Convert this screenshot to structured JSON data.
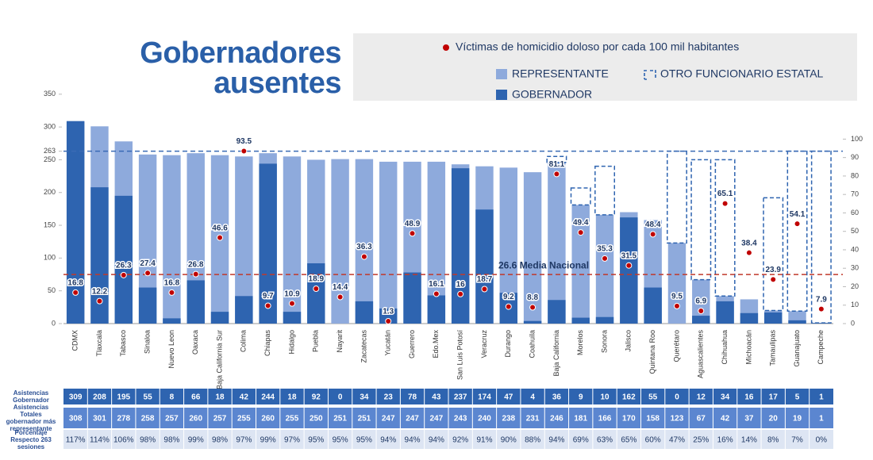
{
  "chart_data": {
    "type": "bar",
    "title": "Gobernadores ausentes",
    "categories": [
      "CDMX",
      "Tlaxcala",
      "Tabasco",
      "Sinaloa",
      "Nuevo Leon",
      "Oaxaca",
      "Baja California Sur",
      "Colima",
      "Chiapas",
      "Hidalgo",
      "Puebla",
      "Nayarit",
      "Zacatecas",
      "Yucatán",
      "Guerrero",
      "Edo.Mex",
      "San Luis Potosí",
      "Veracruz",
      "Durango",
      "Coahuila",
      "Baja California",
      "Morelos",
      "Sonora",
      "Jalisco",
      "Quintana Roo",
      "Querétaro",
      "Aguascalientes",
      "Chihuahua",
      "Michoacán",
      "Tamaulipas",
      "Guanajuato",
      "Campeche"
    ],
    "series": [
      {
        "name": "GOBERNADOR",
        "color": "#2e64b0",
        "values": [
          309,
          208,
          195,
          55,
          8,
          66,
          18,
          42,
          244,
          18,
          92,
          0,
          34,
          23,
          78,
          43,
          237,
          174,
          47,
          4,
          36,
          9,
          10,
          162,
          55,
          0,
          12,
          34,
          16,
          17,
          5,
          1
        ]
      },
      {
        "name": "REPRESENTANTE",
        "color": "#8eaadc",
        "values": [
          308,
          301,
          278,
          258,
          257,
          260,
          257,
          255,
          260,
          255,
          250,
          251,
          251,
          247,
          247,
          247,
          243,
          240,
          238,
          231,
          246,
          181,
          166,
          170,
          158,
          123,
          67,
          42,
          37,
          20,
          19,
          1
        ]
      },
      {
        "name": "OTRO FUNCIONARIO ESTATAL",
        "color": "#2e64b0",
        "style": "dashed",
        "values": [
          null,
          null,
          null,
          null,
          null,
          null,
          null,
          null,
          null,
          null,
          null,
          null,
          null,
          null,
          null,
          null,
          null,
          null,
          null,
          null,
          9,
          26,
          74,
          null,
          null,
          140,
          183,
          208,
          null,
          172,
          244,
          262
        ]
      },
      {
        "name": "Víctimas de homicidio doloso por cada 100 mil habitantes",
        "color": "#c00000",
        "type": "dot",
        "axis": "y2",
        "values": [
          16.8,
          12.2,
          26.3,
          27.4,
          16.8,
          26.8,
          46.6,
          93.5,
          9.7,
          10.9,
          18.9,
          14.4,
          36.3,
          1.3,
          48.9,
          16.1,
          16,
          18.7,
          9.2,
          8.8,
          81.1,
          49.4,
          35.3,
          31.5,
          48.4,
          9.5,
          6.9,
          65.1,
          38.4,
          23.9,
          54.1,
          7.9
        ]
      }
    ],
    "ylim": [
      0,
      380
    ],
    "yticks": [
      0,
      50,
      100,
      150,
      200,
      250,
      263,
      300,
      350
    ],
    "y2lim": [
      0,
      135
    ],
    "y2ticks": [
      0,
      10,
      20,
      30,
      40,
      50,
      60,
      70,
      80,
      90,
      100
    ],
    "reference_lines": [
      {
        "value": 263,
        "axis": "y",
        "color": "#3b6bb5"
      },
      {
        "value": 26.6,
        "axis": "y2",
        "color": "#c0392b",
        "label": "26.6 Media Nacional"
      }
    ]
  },
  "table": {
    "row_headers": [
      "Asistencias Gobernador",
      "Asistencias Totales gobernador más representante",
      "Porcentaje Respecto 263 sesiones"
    ],
    "percentages": [
      "117%",
      "114%",
      "106%",
      "98%",
      "98%",
      "99%",
      "98%",
      "97%",
      "99%",
      "97%",
      "95%",
      "95%",
      "95%",
      "94%",
      "94%",
      "94%",
      "92%",
      "91%",
      "90%",
      "88%",
      "94%",
      "69%",
      "63%",
      "65%",
      "60%",
      "47%",
      "25%",
      "16%",
      "14%",
      "8%",
      "7%",
      "0%"
    ]
  }
}
